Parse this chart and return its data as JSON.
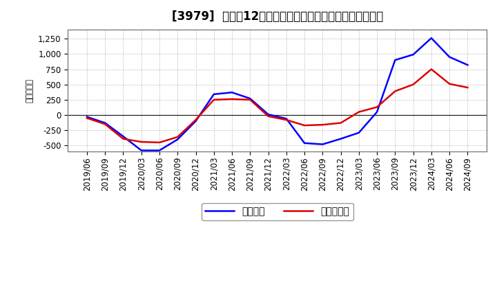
{
  "title": "[3979]  利益だ12か月移動合計の対前年同期増減額の推移",
  "ylabel": "（百万円）",
  "background_color": "#ffffff",
  "plot_bg_color": "#ffffff",
  "grid_color": "#aaaaaa",
  "x_labels": [
    "2019/06",
    "2019/09",
    "2019/12",
    "2020/03",
    "2020/06",
    "2020/09",
    "2020/12",
    "2021/03",
    "2021/06",
    "2021/09",
    "2021/12",
    "2022/03",
    "2022/06",
    "2022/09",
    "2022/12",
    "2023/03",
    "2023/06",
    "2023/09",
    "2023/12",
    "2024/03",
    "2024/06",
    "2024/09"
  ],
  "keijo_rieki": [
    -30,
    -130,
    -350,
    -580,
    -580,
    -400,
    -100,
    340,
    370,
    270,
    10,
    -60,
    -460,
    -480,
    -390,
    -290,
    50,
    900,
    990,
    1260,
    950,
    820
  ],
  "toki_jun_rieki": [
    -50,
    -150,
    -390,
    -440,
    -450,
    -360,
    -80,
    250,
    260,
    250,
    -20,
    -80,
    -170,
    -160,
    -130,
    50,
    130,
    390,
    500,
    750,
    510,
    450
  ],
  "line_color_blue": "#0000ff",
  "line_color_red": "#dd0000",
  "legend_label_keijo": "経常利益",
  "legend_label_toki": "当期純利益",
  "ylim": [
    -600,
    1400
  ],
  "yticks": [
    -500,
    -250,
    0,
    250,
    500,
    750,
    1000,
    1250
  ],
  "title_fontsize": 12,
  "axis_fontsize": 8.5,
  "legend_fontsize": 10
}
